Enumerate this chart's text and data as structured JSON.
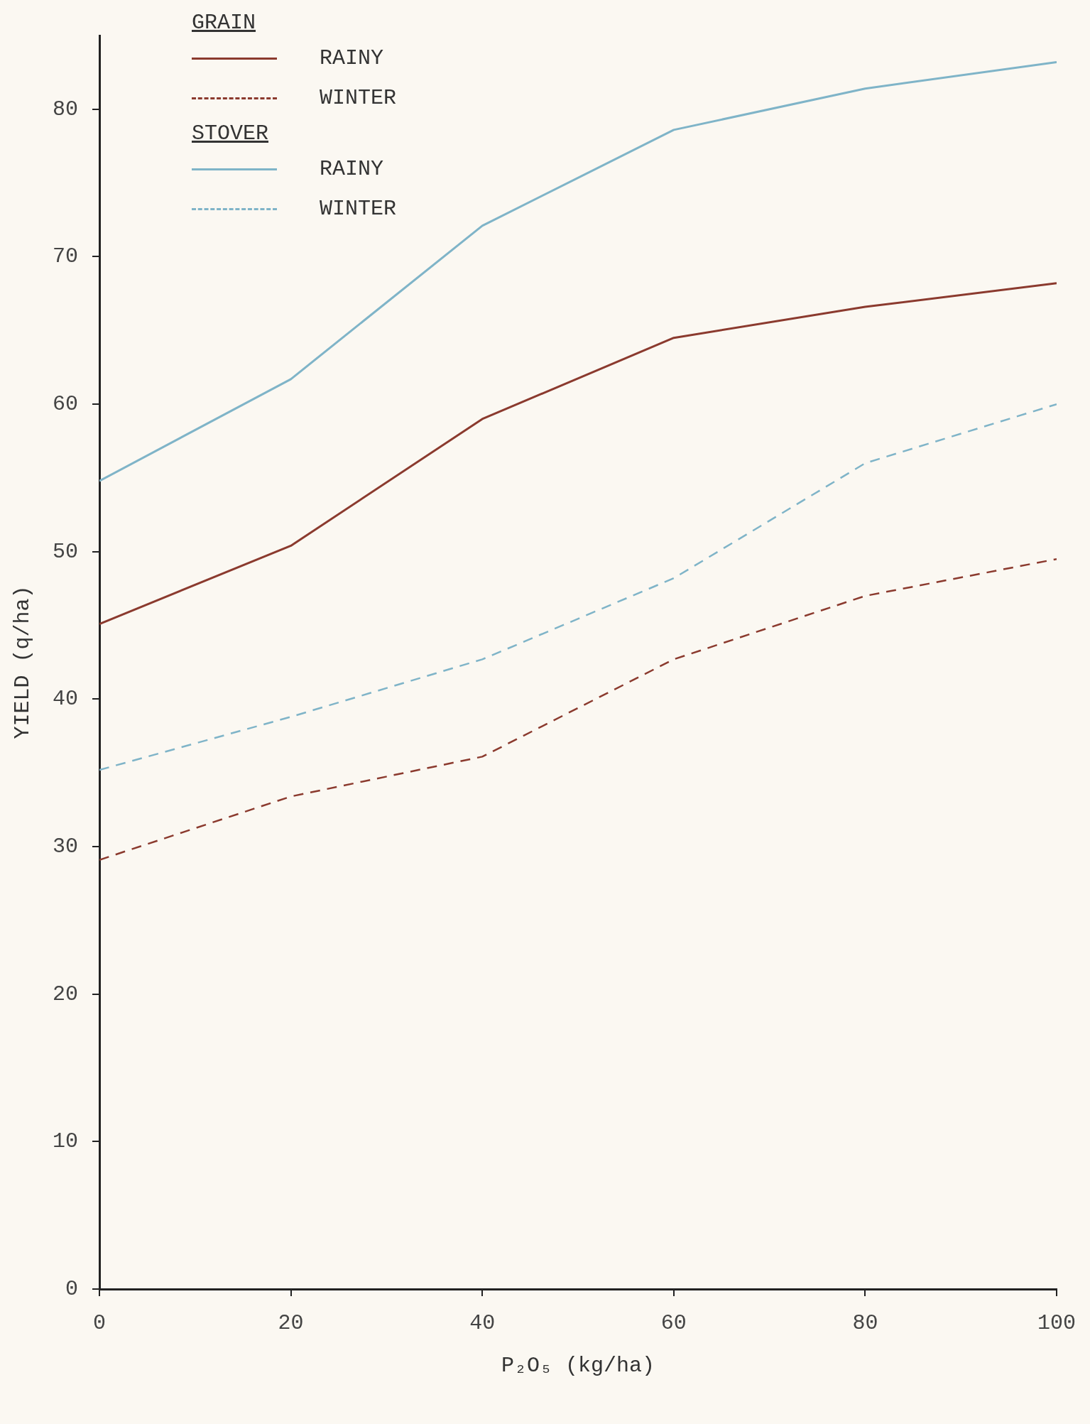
{
  "chart_data": {
    "type": "line",
    "xlabel": "P₂O₅ (kg/ha)",
    "ylabel": "YIELD (q/ha)",
    "x": [
      0,
      20,
      40,
      60,
      80,
      100
    ],
    "series": [
      {
        "name": "RAINY",
        "color": "#8b3a2e",
        "line_style": "solid",
        "values": [
          45.1,
          50.4,
          59.0,
          64.5,
          66.6,
          68.2
        ]
      },
      {
        "name": "WINTER",
        "color": "#8b3a2e",
        "line_style": "dashed",
        "values": [
          29.1,
          33.4,
          36.1,
          42.7,
          47.0,
          49.5
        ]
      },
      {
        "name": "RAINY",
        "color": "#7fb4c8",
        "line_style": "solid",
        "values": [
          54.8,
          61.7,
          72.1,
          78.6,
          81.4,
          83.2
        ]
      },
      {
        "name": "WINTER",
        "color": "#7fb4c8",
        "line_style": "dashed",
        "values": [
          35.2,
          38.8,
          42.7,
          48.2,
          56.0,
          60.0
        ]
      }
    ],
    "annotations": [
      "GRAIN",
      "STOVER"
    ],
    "xlim": [
      0,
      100
    ],
    "xticks": [
      0,
      20,
      40,
      60,
      80,
      100
    ],
    "ylim": [
      0,
      85
    ],
    "yticks": [
      0,
      10,
      20,
      30,
      40,
      50,
      60,
      70,
      80
    ],
    "grid": false,
    "legend": "top left",
    "marker": "none"
  }
}
